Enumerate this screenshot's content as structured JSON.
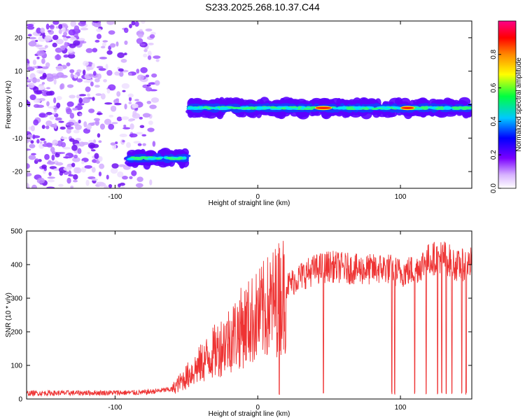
{
  "title": "S233.2025.268.10.37.C44",
  "chart_data": [
    {
      "type": "heatmap",
      "xlabel": "Height of straight line (km)",
      "ylabel": "Frequency (Hz)",
      "xlim": [
        -162,
        150
      ],
      "ylim": [
        -25,
        25
      ],
      "xticks": [
        -100,
        0,
        100
      ],
      "yticks": [
        -20,
        -10,
        0,
        10,
        20
      ],
      "colorbar": {
        "label": "Normalized spectral amplitude",
        "range": [
          0,
          1
        ],
        "ticks": [
          0.0,
          0.2,
          0.4,
          0.6,
          0.8
        ]
      },
      "features": [
        {
          "kind": "noise",
          "x": [
            -162,
            -70
          ],
          "y": [
            -25,
            25
          ]
        },
        {
          "kind": "band",
          "x": [
            -90,
            -50
          ],
          "center_freq": -16,
          "amplitude": 0.3
        },
        {
          "kind": "band",
          "x": [
            -48,
            150
          ],
          "center_freq": -1,
          "amplitude": 0.5
        },
        {
          "kind": "peak",
          "x": [
            40,
            52
          ],
          "center_freq": -1,
          "amplitude": 0.95
        },
        {
          "kind": "peak",
          "x": [
            100,
            110
          ],
          "center_freq": -1,
          "amplitude": 0.9
        }
      ],
      "grid": false
    },
    {
      "type": "line",
      "xlabel": "Height of straight line (km)",
      "ylabel": "SNR (10 * v/v)",
      "xlim": [
        -162,
        150
      ],
      "ylim": [
        0,
        500
      ],
      "xticks": [
        -100,
        0,
        100
      ],
      "yticks": [
        0,
        100,
        200,
        300,
        400,
        500
      ],
      "color": "#ee3333",
      "profile": {
        "x": [
          -162,
          -80,
          -60,
          -50,
          -40,
          -30,
          -20,
          -10,
          0,
          10,
          20,
          30,
          40,
          50,
          60,
          70,
          80,
          90,
          100,
          110,
          120,
          130,
          140,
          150
        ],
        "y": [
          18,
          20,
          30,
          70,
          110,
          150,
          190,
          230,
          260,
          300,
          340,
          370,
          390,
          400,
          395,
          390,
          390,
          395,
          380,
          390,
          420,
          430,
          400,
          410
        ]
      },
      "dropouts": [
        15,
        46,
        94,
        96,
        110,
        118,
        126,
        129,
        132,
        136,
        143,
        146
      ],
      "grid": false
    }
  ]
}
